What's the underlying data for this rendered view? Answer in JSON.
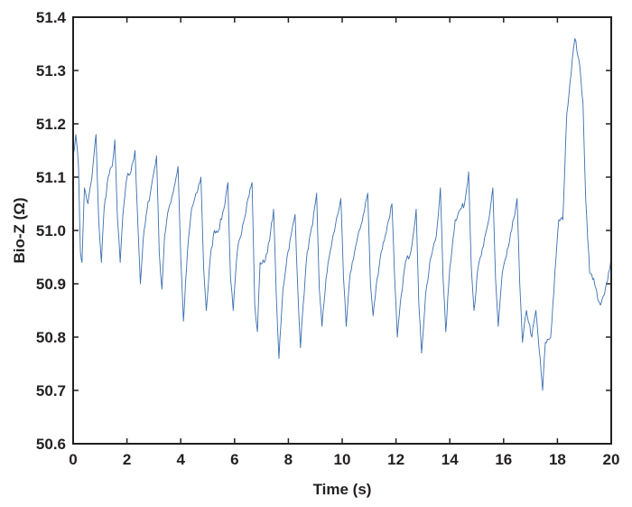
{
  "chart_data": {
    "type": "line",
    "xlabel": "Time (s)",
    "ylabel": "Bio-Z (Ω)",
    "xlim": [
      0,
      20
    ],
    "ylim": [
      50.6,
      51.4
    ],
    "xticks": [
      0,
      2,
      4,
      6,
      8,
      10,
      12,
      14,
      16,
      18,
      20
    ],
    "yticks": [
      50.6,
      50.7,
      50.8,
      50.9,
      51.0,
      51.1,
      51.2,
      51.3,
      51.4
    ],
    "xtick_labels": [
      "0",
      "2",
      "4",
      "6",
      "8",
      "10",
      "12",
      "14",
      "16",
      "18",
      "20"
    ],
    "ytick_labels": [
      "50.6",
      "50.7",
      "50.8",
      "50.9",
      "51.0",
      "51.1",
      "51.2",
      "51.3",
      "51.4"
    ],
    "grid": false,
    "legend": "none",
    "colors": {
      "line": "#3b6fb0",
      "axis": "#231f20"
    },
    "series": [
      {
        "values_xy": [
          [
            0.0,
            51.14
          ],
          [
            0.1,
            51.18
          ],
          [
            0.2,
            51.12
          ],
          [
            0.27,
            50.96
          ],
          [
            0.33,
            50.94
          ],
          [
            0.42,
            51.08
          ],
          [
            0.55,
            51.05
          ],
          [
            0.7,
            51.1
          ],
          [
            0.85,
            51.18
          ],
          [
            0.95,
            51.02
          ],
          [
            1.05,
            50.94
          ],
          [
            1.15,
            51.04
          ],
          [
            1.3,
            51.1
          ],
          [
            1.45,
            51.12
          ],
          [
            1.55,
            51.17
          ],
          [
            1.65,
            51.02
          ],
          [
            1.75,
            50.94
          ],
          [
            1.85,
            51.03
          ],
          [
            2.0,
            51.1
          ],
          [
            2.15,
            51.11
          ],
          [
            2.3,
            51.15
          ],
          [
            2.4,
            51.02
          ],
          [
            2.5,
            50.9
          ],
          [
            2.6,
            50.98
          ],
          [
            2.75,
            51.04
          ],
          [
            2.9,
            51.08
          ],
          [
            3.1,
            51.14
          ],
          [
            3.2,
            50.96
          ],
          [
            3.3,
            50.89
          ],
          [
            3.4,
            50.99
          ],
          [
            3.55,
            51.04
          ],
          [
            3.75,
            51.08
          ],
          [
            3.9,
            51.12
          ],
          [
            4.0,
            50.95
          ],
          [
            4.1,
            50.83
          ],
          [
            4.25,
            50.96
          ],
          [
            4.4,
            51.04
          ],
          [
            4.6,
            51.07
          ],
          [
            4.75,
            51.1
          ],
          [
            4.85,
            50.93
          ],
          [
            4.95,
            50.85
          ],
          [
            5.1,
            50.95
          ],
          [
            5.25,
            51.0
          ],
          [
            5.4,
            51.0
          ],
          [
            5.6,
            51.04
          ],
          [
            5.75,
            51.09
          ],
          [
            5.85,
            50.91
          ],
          [
            5.95,
            50.85
          ],
          [
            6.1,
            50.96
          ],
          [
            6.3,
            51.01
          ],
          [
            6.5,
            51.06
          ],
          [
            6.65,
            51.09
          ],
          [
            6.75,
            50.86
          ],
          [
            6.85,
            50.81
          ],
          [
            6.95,
            50.94
          ],
          [
            7.1,
            50.94
          ],
          [
            7.3,
            50.98
          ],
          [
            7.45,
            51.04
          ],
          [
            7.55,
            50.88
          ],
          [
            7.65,
            50.76
          ],
          [
            7.8,
            50.89
          ],
          [
            7.95,
            50.95
          ],
          [
            8.1,
            50.99
          ],
          [
            8.25,
            51.03
          ],
          [
            8.35,
            50.89
          ],
          [
            8.45,
            50.78
          ],
          [
            8.55,
            50.86
          ],
          [
            8.7,
            50.96
          ],
          [
            8.9,
            51.01
          ],
          [
            9.05,
            51.07
          ],
          [
            9.15,
            50.89
          ],
          [
            9.25,
            50.82
          ],
          [
            9.4,
            50.91
          ],
          [
            9.55,
            50.96
          ],
          [
            9.75,
            51.01
          ],
          [
            9.95,
            51.06
          ],
          [
            10.05,
            50.91
          ],
          [
            10.15,
            50.82
          ],
          [
            10.3,
            50.92
          ],
          [
            10.5,
            50.97
          ],
          [
            10.7,
            51.01
          ],
          [
            10.95,
            51.07
          ],
          [
            11.05,
            50.9
          ],
          [
            11.15,
            50.84
          ],
          [
            11.3,
            50.91
          ],
          [
            11.45,
            50.96
          ],
          [
            11.6,
            50.99
          ],
          [
            11.85,
            51.05
          ],
          [
            11.95,
            50.91
          ],
          [
            12.05,
            50.8
          ],
          [
            12.2,
            50.88
          ],
          [
            12.35,
            50.94
          ],
          [
            12.55,
            50.96
          ],
          [
            12.75,
            51.04
          ],
          [
            12.85,
            50.86
          ],
          [
            12.95,
            50.77
          ],
          [
            13.1,
            50.88
          ],
          [
            13.3,
            50.95
          ],
          [
            13.5,
            50.99
          ],
          [
            13.65,
            51.08
          ],
          [
            13.75,
            50.91
          ],
          [
            13.85,
            50.81
          ],
          [
            14.0,
            50.93
          ],
          [
            14.2,
            51.02
          ],
          [
            14.4,
            51.04
          ],
          [
            14.55,
            51.05
          ],
          [
            14.7,
            51.11
          ],
          [
            14.8,
            50.93
          ],
          [
            14.9,
            50.85
          ],
          [
            15.05,
            50.93
          ],
          [
            15.25,
            50.97
          ],
          [
            15.45,
            51.02
          ],
          [
            15.6,
            51.08
          ],
          [
            15.7,
            50.91
          ],
          [
            15.8,
            50.82
          ],
          [
            15.95,
            50.92
          ],
          [
            16.1,
            50.95
          ],
          [
            16.3,
            51.0
          ],
          [
            16.5,
            51.06
          ],
          [
            16.6,
            50.9
          ],
          [
            16.7,
            50.79
          ],
          [
            16.85,
            50.85
          ],
          [
            17.05,
            50.8
          ],
          [
            17.2,
            50.85
          ],
          [
            17.4,
            50.73
          ],
          [
            17.45,
            50.7
          ],
          [
            17.55,
            50.79
          ],
          [
            17.75,
            50.8
          ],
          [
            17.95,
            50.95
          ],
          [
            18.05,
            51.02
          ],
          [
            18.2,
            51.02
          ],
          [
            18.35,
            51.22
          ],
          [
            18.55,
            51.32
          ],
          [
            18.65,
            51.36
          ],
          [
            18.8,
            51.32
          ],
          [
            18.95,
            51.24
          ],
          [
            19.05,
            51.06
          ],
          [
            19.2,
            50.92
          ],
          [
            19.35,
            50.91
          ],
          [
            19.5,
            50.87
          ],
          [
            19.6,
            50.86
          ],
          [
            19.75,
            50.88
          ],
          [
            19.9,
            50.92
          ],
          [
            20.0,
            50.95
          ]
        ]
      }
    ]
  }
}
